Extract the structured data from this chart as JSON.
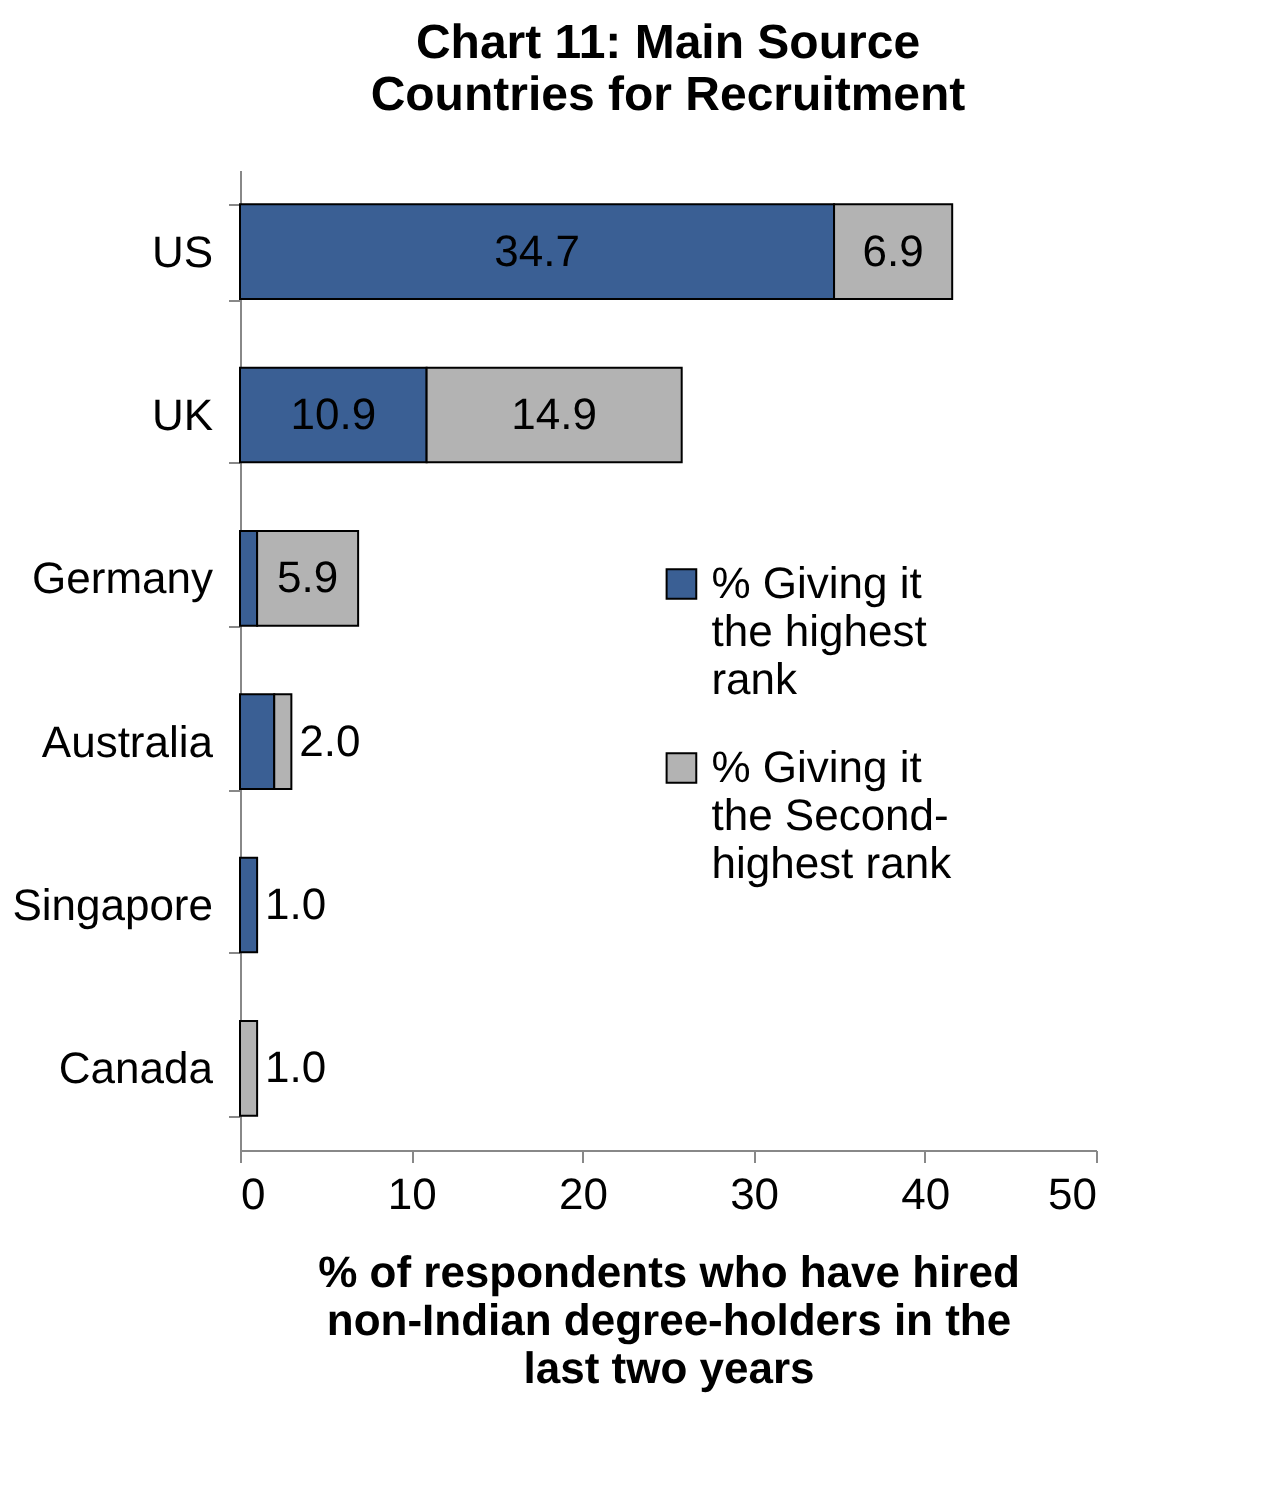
{
  "chart_data": {
    "type": "bar",
    "orientation": "horizontal",
    "stacked": true,
    "title": "Chart 11: Main Source Countries for Recruitment",
    "xlabel": "% of respondents who have hired non-Indian degree-holders in the last two years",
    "categories": [
      "US",
      "UK",
      "Germany",
      "Australia",
      "Singapore",
      "Canada"
    ],
    "series": [
      {
        "name": "% Giving it the highest rank",
        "color": "#3a5f94",
        "values": [
          34.7,
          10.9,
          1.0,
          2.0,
          1.0,
          null
        ],
        "value_labels": [
          "34.7",
          "10.9",
          null,
          "2.0",
          "1.0",
          null
        ]
      },
      {
        "name": "% Giving it the Second-highest rank",
        "color": "#b3b3b3",
        "values": [
          6.9,
          14.9,
          5.9,
          1.0,
          null,
          1.0
        ],
        "value_labels": [
          "6.9",
          "14.9",
          "5.9",
          null,
          null,
          "1.0"
        ]
      }
    ],
    "xlim": [
      0,
      50
    ],
    "xticks": [
      0,
      10,
      20,
      30,
      40,
      50
    ],
    "legend": "right",
    "grid": false
  }
}
